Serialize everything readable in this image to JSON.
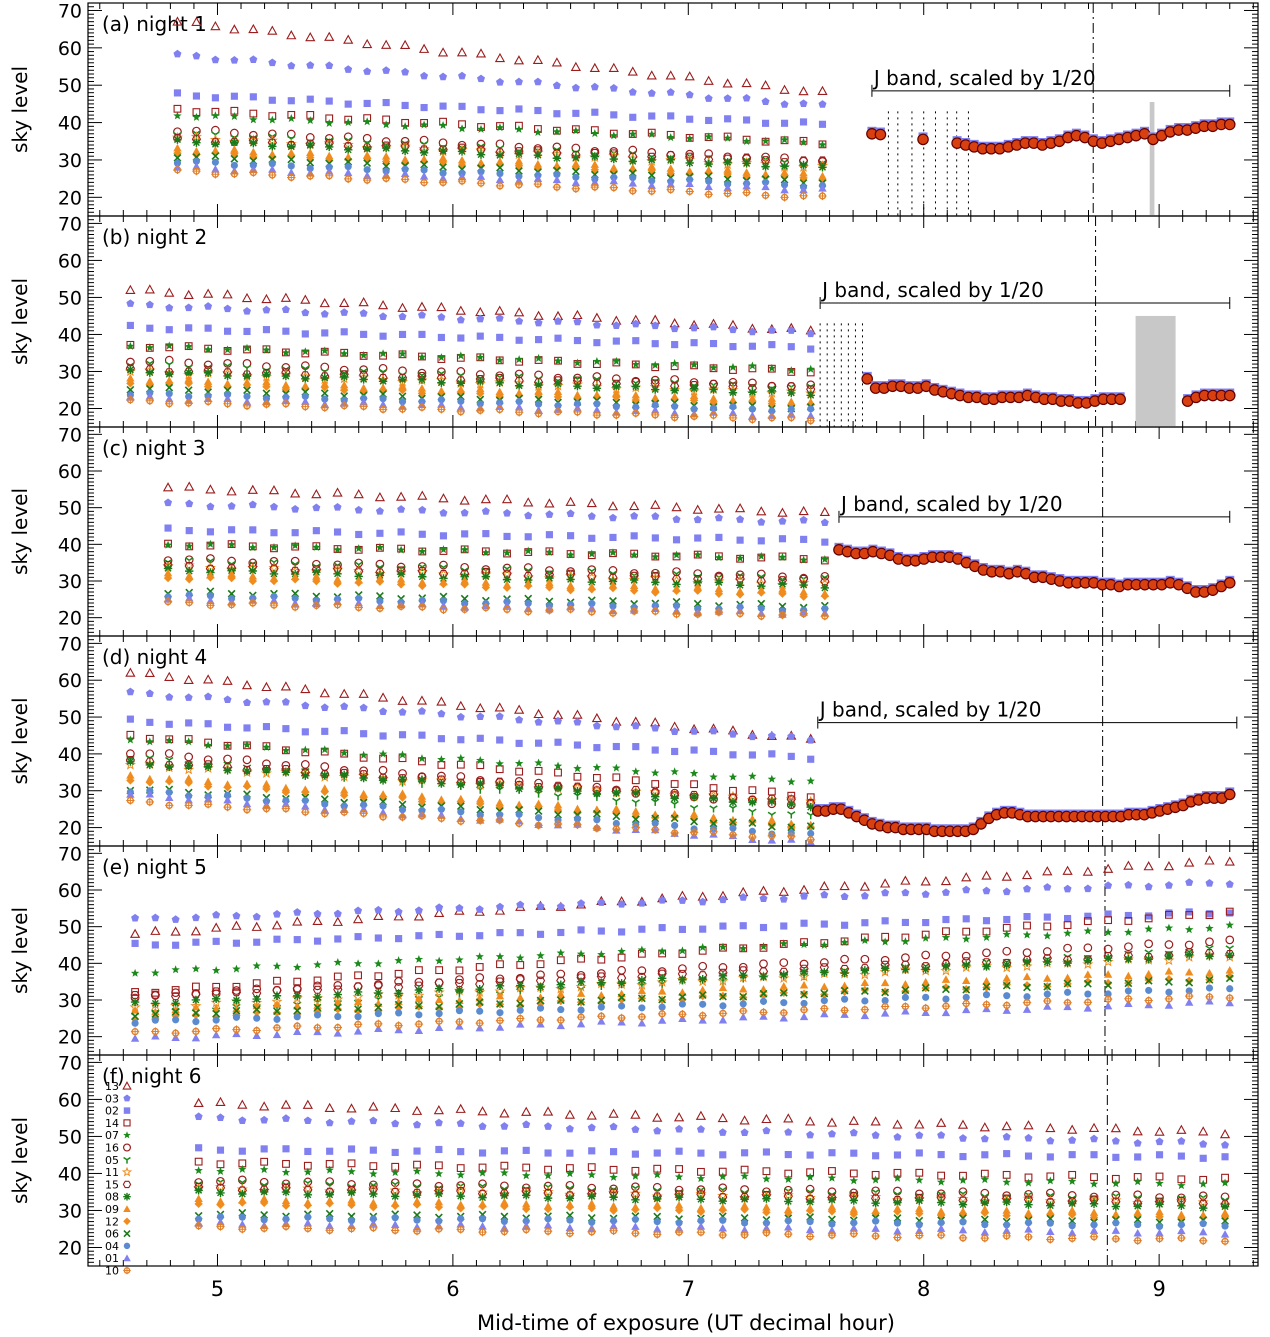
{
  "figure": {
    "xlabel": "Mid-time of exposure (UT decimal hour)",
    "ylabel": "sky level",
    "xlim": [
      4.45,
      9.42
    ],
    "ylim": [
      15,
      72
    ],
    "xticks": [
      5,
      6,
      7,
      8,
      9
    ],
    "yticks": [
      20,
      30,
      40,
      50,
      60,
      70
    ],
    "jband_label": "J band, scaled by 1/20"
  },
  "colors": {
    "s13": "#9b1c1c",
    "s03": "#8080f0",
    "s02": "#8080f0",
    "s14": "#9b1c1c",
    "s07": "#1a8a1a",
    "s16": "#9b1c1c",
    "s05": "#1a8a1a",
    "s11": "#f08c1e",
    "s15": "#9b1c1c",
    "s08": "#1a7a1a",
    "s09": "#f08c1e",
    "s12": "#f08c1e",
    "s06": "#1a7a1a",
    "s04": "#5a8ad0",
    "s01": "#8080f0",
    "s10": "#e0802a",
    "jband_fill": "#d84010",
    "jband_edge": "#600000",
    "jband_top": "#8080f0",
    "gap_bar": "#c8c8c8"
  },
  "legend": {
    "placement": "left inside panel (f)",
    "items": [
      {
        "label": "13",
        "symbol": "triangle-open",
        "key": "s13"
      },
      {
        "label": "03",
        "symbol": "pentagon",
        "key": "s03"
      },
      {
        "label": "02",
        "symbol": "square",
        "key": "s02"
      },
      {
        "label": "14",
        "symbol": "square-open",
        "key": "s14"
      },
      {
        "label": "07",
        "symbol": "star",
        "key": "s07"
      },
      {
        "label": "16",
        "symbol": "circle-open",
        "key": "s16"
      },
      {
        "label": "05",
        "symbol": "tri-bar",
        "key": "s05"
      },
      {
        "label": "11",
        "symbol": "star-open",
        "key": "s11"
      },
      {
        "label": "15",
        "symbol": "hexagon-open",
        "key": "s15"
      },
      {
        "label": "08",
        "symbol": "asterisk",
        "key": "s08"
      },
      {
        "label": "09",
        "symbol": "triangle-filled",
        "key": "s09"
      },
      {
        "label": "12",
        "symbol": "diamond",
        "key": "s12"
      },
      {
        "label": "06",
        "symbol": "cross",
        "key": "s06"
      },
      {
        "label": "04",
        "symbol": "dot",
        "key": "s04"
      },
      {
        "label": "01",
        "symbol": "triangle-filled",
        "key": "s01"
      },
      {
        "label": "10",
        "symbol": "ring-star",
        "key": "s10"
      }
    ]
  },
  "chart_data": [
    {
      "type": "scatter",
      "title": "(a) night 1",
      "jband_label": "J band, scaled by 1/20",
      "y_start": {
        "13": 67,
        "03": 58,
        "02": 47.5,
        "14": 43.5,
        "07": 42,
        "16": 38,
        "05": 37,
        "11": 36,
        "15": 35.5,
        "08": 35,
        "09": 33,
        "12": 32,
        "06": 31,
        "04": 29.5,
        "01": 28,
        "10": 27
      },
      "y_end": {
        "13": 48,
        "03": 44.5,
        "02": 39.5,
        "14": 34.5,
        "07": 34.5,
        "16": 29.8,
        "05": 29,
        "11": 28,
        "15": 29.5,
        "08": 28,
        "09": 26,
        "12": 25,
        "06": 24,
        "04": 23,
        "01": 22,
        "10": 20
      },
      "optical_x": [
        4.83,
        7.57
      ],
      "n_exposures": 35,
      "jband_x": [
        7.78,
        9.3
      ],
      "jband_y": [
        37,
        36.8,
        37,
        36.5,
        36,
        35.5,
        35.5,
        36,
        35.5,
        35,
        34.5,
        34,
        33.5,
        33,
        33,
        33,
        33.5,
        34,
        34.5,
        34.5,
        34,
        34.5,
        35,
        36,
        36.5,
        36,
        35,
        34.5,
        35,
        35.5,
        36,
        36.5,
        37,
        35.5,
        36.5,
        37.5,
        38,
        38,
        38.5,
        39,
        39,
        39.5,
        39.5
      ],
      "jband_gaps": [
        [
          7.85,
          7.97
        ],
        [
          8.0,
          8.13
        ]
      ],
      "dotted_x": [
        7.85,
        7.89,
        7.95,
        8.0,
        8.05,
        8.1,
        8.14,
        8.19
      ],
      "arrow_range": [
        7.78,
        9.3
      ],
      "dashdot_x": 8.72,
      "gap_bars": [
        [
          8.96,
          8.98,
          15,
          45.5
        ]
      ]
    },
    {
      "type": "scatter",
      "title": "(b) night 2",
      "jband_label": "J band, scaled by 1/20",
      "y_start": {
        "13": 52,
        "03": 48,
        "02": 42,
        "14": 37,
        "07": 37,
        "16": 33,
        "05": 32,
        "11": 30,
        "15": 30.5,
        "08": 30,
        "09": 28,
        "12": 27,
        "06": 25.5,
        "04": 24,
        "01": 23,
        "10": 22
      },
      "y_end": {
        "13": 41,
        "03": 40.5,
        "02": 36.5,
        "14": 30,
        "07": 30.5,
        "16": 26,
        "05": 25.5,
        "11": 24,
        "15": 25.5,
        "08": 24,
        "09": 22,
        "12": 21,
        "06": 20,
        "04": 19.5,
        "01": 18,
        "10": 17
      },
      "optical_x": [
        4.63,
        7.52
      ],
      "n_exposures": 36,
      "jband_x": [
        7.76,
        9.3
      ],
      "jband_y": [
        28,
        25.5,
        25.5,
        26,
        26,
        25.5,
        25.5,
        26,
        25,
        24.5,
        24,
        23.5,
        23,
        23,
        22.5,
        22.5,
        23,
        23,
        23,
        23.5,
        23,
        22.5,
        22.5,
        22,
        22,
        21.5,
        21.5,
        22,
        22.5,
        22.5,
        22.5,
        22.5,
        23,
        23.5,
        24,
        24,
        24,
        23.5,
        22,
        23,
        23.5,
        23.5,
        23.5,
        23.5
      ],
      "jband_gaps": [
        [
          8.85,
          9.1
        ]
      ],
      "dotted_x": [
        7.56,
        7.59,
        7.62,
        7.65,
        7.68,
        7.71,
        7.74
      ],
      "arrow_range": [
        7.56,
        9.3
      ],
      "dashdot_x": 8.73,
      "gap_bars": [
        [
          8.9,
          9.07,
          15,
          45
        ]
      ]
    },
    {
      "type": "scatter",
      "title": "(c) night 3",
      "jband_label": "J band, scaled by 1/20",
      "y_start": {
        "13": 55.5,
        "03": 51,
        "02": 44,
        "14": 40,
        "07": 40,
        "16": 36,
        "05": 35.5,
        "11": 34,
        "15": 34,
        "08": 33,
        "09": 32,
        "12": 31,
        "06": 27,
        "04": 26,
        "01": 25,
        "10": 24
      },
      "y_end": {
        "13": 48.5,
        "03": 46,
        "02": 41,
        "14": 36,
        "07": 36,
        "16": 31,
        "05": 30.5,
        "11": 29,
        "15": 30,
        "08": 28.5,
        "09": 27,
        "12": 26,
        "06": 23,
        "04": 22,
        "01": 21,
        "10": 20.5
      },
      "optical_x": [
        4.79,
        7.58
      ],
      "n_exposures": 32,
      "jband_x": [
        7.64,
        9.3
      ],
      "jband_y": [
        38.5,
        38,
        37.5,
        37.5,
        38,
        37.5,
        37,
        36,
        35.5,
        35.5,
        36,
        36.5,
        36.5,
        36.5,
        36,
        35,
        34,
        33,
        32.5,
        32.5,
        32,
        32.5,
        32,
        31,
        31,
        30.5,
        30,
        29.5,
        29.5,
        29.5,
        29.5,
        29,
        29,
        28.5,
        29,
        29,
        29,
        29,
        29,
        29.5,
        29,
        28,
        27,
        27,
        27.5,
        28.5,
        29.5
      ],
      "jband_gaps": [],
      "dotted_x": [],
      "arrow_range": [
        7.64,
        9.3
      ],
      "dashdot_x": 8.76,
      "gap_bars": []
    },
    {
      "type": "scatter",
      "title": "(d) night 4",
      "jband_label": "J band, scaled by 1/20",
      "y_start": {
        "13": 62,
        "03": 56.5,
        "02": 49,
        "14": 45,
        "07": 44,
        "16": 40.5,
        "05": 39,
        "11": 37,
        "15": 38,
        "08": 37.5,
        "09": 34,
        "12": 33,
        "06": 30.5,
        "04": 30,
        "01": 29,
        "10": 27
      },
      "y_end": {
        "13": 44,
        "03": 44,
        "02": 39,
        "14": 28.5,
        "07": 32.5,
        "16": 26,
        "05": 23,
        "11": 27,
        "15": 27,
        "08": 26,
        "09": 21,
        "12": 20,
        "06": 20,
        "04": 18,
        "01": 16,
        "10": 17
      },
      "optical_x": [
        4.63,
        7.52
      ],
      "n_exposures": 36,
      "jband_x": [
        7.55,
        9.3
      ],
      "jband_y": [
        24.5,
        24.5,
        25,
        25,
        24,
        23,
        22,
        21,
        20.5,
        20,
        20,
        19.5,
        19.5,
        19.5,
        19.5,
        19,
        19,
        19,
        19,
        19,
        19.5,
        21,
        22.5,
        23.5,
        24,
        24,
        23.5,
        23,
        23,
        23,
        23,
        23,
        23,
        23,
        23,
        23,
        23,
        23,
        23,
        23,
        23.5,
        23.5,
        23.5,
        24,
        24.5,
        25,
        25.5,
        26,
        27,
        27.5,
        28,
        28,
        28,
        29
      ],
      "jband_gaps": [],
      "dotted_x": [],
      "arrow_range": [
        7.55,
        9.33
      ],
      "dashdot_x": 8.76,
      "gap_bars": []
    },
    {
      "type": "scatter",
      "title": "(e) night 5",
      "y_start": {
        "13": 48,
        "03": 52,
        "02": 45,
        "14": 32,
        "07": 37.5,
        "16": 31,
        "05": 26,
        "11": 28,
        "15": 31,
        "08": 29,
        "09": 27,
        "12": 25,
        "06": 26,
        "04": 24,
        "01": 19.5,
        "10": 21
      },
      "y_end": {
        "13": 68,
        "03": 62,
        "02": 54,
        "14": 54,
        "07": 50,
        "16": 46,
        "05": 44,
        "11": 42,
        "15": 43,
        "08": 42.5,
        "09": 38,
        "12": 36,
        "06": 35.5,
        "04": 33,
        "01": 29.5,
        "10": 31
      },
      "optical_x": [
        4.65,
        9.3
      ],
      "n_exposures": 55,
      "jband_x": [],
      "jband_y": [],
      "jband_gaps": [],
      "dotted_x": [],
      "arrow_range": [],
      "dashdot_x": 8.77,
      "gap_bars": []
    },
    {
      "type": "scatter",
      "title": "(f) night 6",
      "y_start": {
        "13": 59,
        "03": 55,
        "02": 46.5,
        "14": 43,
        "07": 41,
        "16": 38,
        "05": 37.5,
        "11": 36,
        "15": 36,
        "08": 35,
        "09": 33,
        "12": 32,
        "06": 29,
        "04": 28,
        "01": 26.5,
        "10": 25.5
      },
      "y_end": {
        "13": 51,
        "03": 48,
        "02": 44.5,
        "14": 38.5,
        "07": 37,
        "16": 33.5,
        "05": 33,
        "11": 32,
        "15": 32,
        "08": 31,
        "09": 29,
        "12": 28,
        "06": 27,
        "04": 26,
        "01": 24,
        "10": 22
      },
      "optical_x": [
        4.92,
        9.28
      ],
      "n_exposures": 48,
      "jband_x": [],
      "jband_y": [],
      "jband_gaps": [],
      "dotted_x": [],
      "arrow_range": [],
      "dashdot_x": 8.78,
      "gap_bars": []
    }
  ]
}
